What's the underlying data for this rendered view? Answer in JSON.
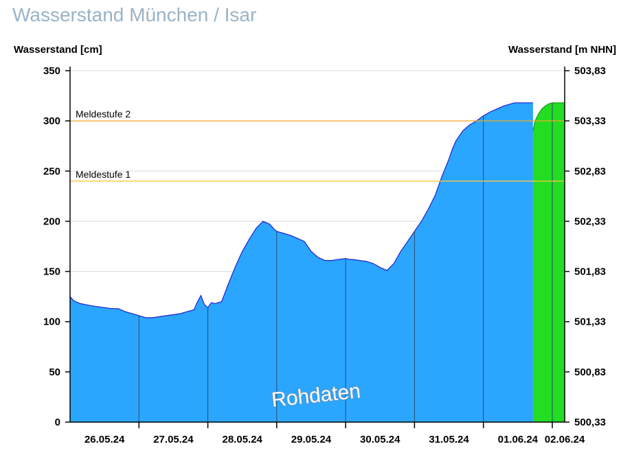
{
  "page": {
    "title": "Wasserstand München / Isar"
  },
  "chart_data": {
    "type": "area",
    "ylabel_left": "Wasserstand [cm]",
    "ylabel_right": "Wasserstand [m NHN]",
    "ylim": [
      0,
      350
    ],
    "yticks_left": [
      "0",
      "50",
      "100",
      "150",
      "200",
      "250",
      "300",
      "350"
    ],
    "yticks_right": [
      "500,33",
      "500,83",
      "501,33",
      "501,83",
      "502,33",
      "502,83",
      "503,33",
      "503,83"
    ],
    "xlim": [
      0,
      7.18
    ],
    "xticks": [
      {
        "label": "26.05.24",
        "pos": 0.5
      },
      {
        "label": "27.05.24",
        "pos": 1.5
      },
      {
        "label": "28.05.24",
        "pos": 2.5
      },
      {
        "label": "29.05.24",
        "pos": 3.5
      },
      {
        "label": "30.05.24",
        "pos": 4.5
      },
      {
        "label": "31.05.24",
        "pos": 5.5
      },
      {
        "label": "01.06.24",
        "pos": 6.5
      },
      {
        "label": "02.06.24",
        "pos": 7.18
      }
    ],
    "day_boundaries": [
      1,
      2,
      3,
      4,
      5,
      6,
      7
    ],
    "thresholds": [
      {
        "label": "Meldestufe 2",
        "value": 300,
        "color": "#f5a623"
      },
      {
        "label": "Meldestufe 1",
        "value": 240,
        "color": "#f5c842"
      }
    ],
    "series": [
      {
        "kind": "measured",
        "color": "#2ba6ff",
        "line_color": "#1f1fd0",
        "x": [
          0.0,
          0.05,
          0.15,
          0.3,
          0.4,
          0.5,
          0.6,
          0.7,
          0.8,
          0.9,
          1.0,
          1.05,
          1.1,
          1.2,
          1.3,
          1.4,
          1.5,
          1.6,
          1.7,
          1.8,
          1.85,
          1.9,
          1.95,
          2.0,
          2.05,
          2.1,
          2.2,
          2.3,
          2.4,
          2.5,
          2.6,
          2.7,
          2.8,
          2.9,
          2.95,
          3.0,
          3.1,
          3.2,
          3.3,
          3.4,
          3.5,
          3.6,
          3.7,
          3.8,
          3.9,
          4.0,
          4.05,
          4.1,
          4.2,
          4.3,
          4.4,
          4.5,
          4.6,
          4.7,
          4.8,
          4.9,
          5.0,
          5.1,
          5.2,
          5.3,
          5.4,
          5.5,
          5.55,
          5.6,
          5.7,
          5.8,
          5.9,
          6.0,
          6.1,
          6.2,
          6.3,
          6.35,
          6.4,
          6.45,
          6.5,
          6.55,
          6.6,
          6.65,
          6.7,
          6.72
        ],
        "values": [
          125,
          121,
          118,
          116,
          115,
          114,
          113,
          113,
          110,
          108,
          106,
          105,
          104,
          104,
          105,
          106,
          107,
          108,
          110,
          112,
          120,
          126,
          117,
          114,
          119,
          118,
          120,
          138,
          155,
          170,
          182,
          193,
          200,
          197,
          193,
          190,
          188,
          186,
          183,
          180,
          170,
          164,
          161,
          161,
          162,
          163,
          162,
          162,
          161,
          160,
          158,
          154,
          151,
          158,
          170,
          180,
          190,
          200,
          212,
          226,
          245,
          262,
          272,
          280,
          290,
          296,
          300,
          305,
          309,
          312,
          315,
          316,
          317,
          318,
          318,
          318,
          318,
          318,
          318,
          318
        ]
      },
      {
        "kind": "forecast",
        "color": "#22dd22",
        "line_color": "#119911",
        "x": [
          6.72,
          6.75,
          6.8,
          6.85,
          6.9,
          6.95,
          7.0,
          7.05,
          7.1,
          7.18
        ],
        "values": [
          290,
          300,
          307,
          312,
          315,
          317,
          318,
          318,
          318,
          318
        ]
      }
    ],
    "watermark": "Rohdaten"
  }
}
